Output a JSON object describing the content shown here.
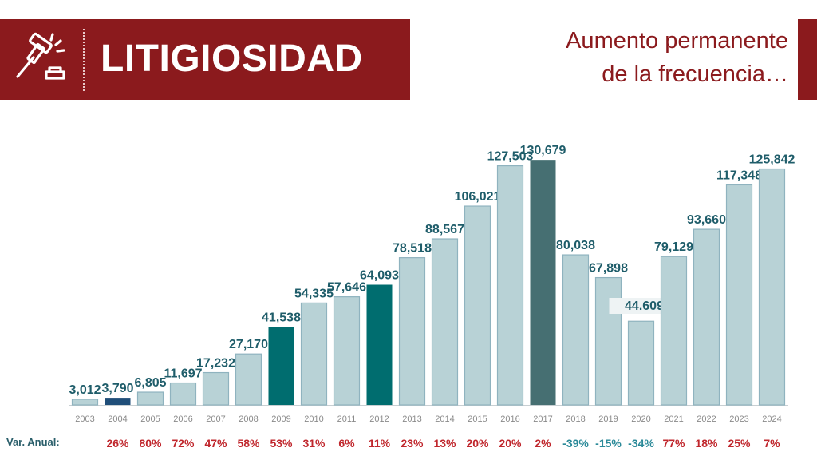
{
  "header": {
    "title": "LITIGIOSIDAD",
    "subtitle_line1": "Aumento permanente",
    "subtitle_line2": "de la frecuencia…"
  },
  "var_label": "Var. Anual:",
  "colors": {
    "banner": "#8b1a1d",
    "bar_default": "#b8d2d6",
    "bar_2004": "#1f4e79",
    "bar_2009": "#006d6f",
    "bar_2012": "#006d6f",
    "bar_2017": "#466f72",
    "value_label": "#1f5d6a",
    "var_positive": "#c0272d",
    "var_negative": "#2b8a99"
  },
  "chart_data": {
    "type": "bar",
    "categories": [
      "2003",
      "2004",
      "2005",
      "2006",
      "2007",
      "2008",
      "2009",
      "2010",
      "2011",
      "2012",
      "2013",
      "2014",
      "2015",
      "2016",
      "2017",
      "2018",
      "2019",
      "2020",
      "2021",
      "2022",
      "2023",
      "2024"
    ],
    "values": [
      3012,
      3790,
      6805,
      11697,
      17232,
      27170,
      41538,
      54335,
      57646,
      64093,
      78518,
      88567,
      106021,
      127503,
      130679,
      80038,
      67898,
      44609,
      79129,
      93660,
      117348,
      125842
    ],
    "value_labels": [
      "3,012",
      "3,790",
      "6,805",
      "11,697",
      "17,232",
      "27,170",
      "41,538",
      "54,335",
      "57,646",
      "64,093",
      "78,518",
      "88,567",
      "106,021",
      "127,503",
      "130,679",
      "80,038",
      "67,898",
      "44.609",
      "79,129",
      "93,660",
      "117,348",
      "125,842"
    ],
    "var_anual": [
      "",
      "26%",
      "80%",
      "72%",
      "47%",
      "58%",
      "53%",
      "31%",
      "6%",
      "11%",
      "23%",
      "13%",
      "20%",
      "20%",
      "2%",
      "-39%",
      "-15%",
      "-34%",
      "77%",
      "18%",
      "25%",
      "7%"
    ],
    "highlight": {
      "2004": "bar_2004",
      "2009": "bar_2009",
      "2012": "bar_2012",
      "2017": "bar_2017"
    },
    "boxed_label_year": "2020",
    "ylim": [
      0,
      135000
    ],
    "grid": false,
    "xlabel": "",
    "ylabel": ""
  }
}
